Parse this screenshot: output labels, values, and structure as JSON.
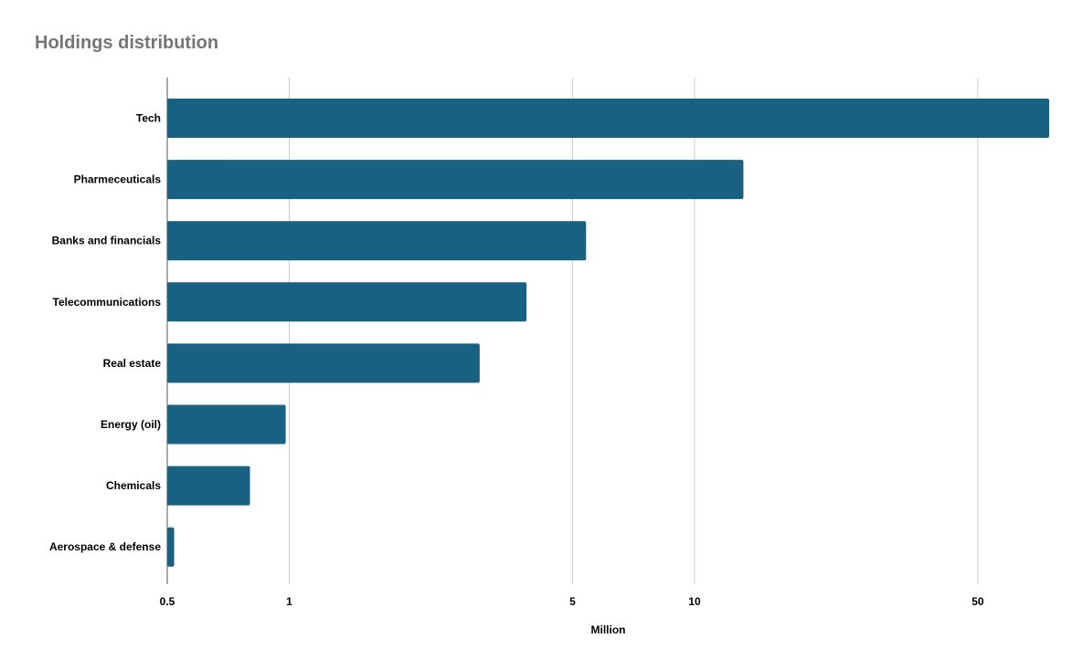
{
  "chart_data": {
    "type": "bar",
    "orientation": "horizontal",
    "title": "Holdings distribution",
    "xlabel": "Million",
    "ylabel": "",
    "x_scale": "log",
    "xlim": [
      0.5,
      75
    ],
    "x_ticks": [
      0.5,
      1,
      5,
      10,
      50
    ],
    "x_tick_labels": [
      "0.5",
      "1",
      "5",
      "10",
      "50"
    ],
    "grid": "vertical",
    "legend": "none",
    "categories": [
      "Tech",
      "Pharmeceuticals",
      "Banks and financials",
      "Telecommunications",
      "Real estate",
      "Energy (oil)",
      "Chemicals",
      "Aerospace & defense"
    ],
    "values": [
      75,
      13.2,
      5.4,
      3.85,
      2.95,
      0.98,
      0.8,
      0.52
    ],
    "colors": {
      "bar": "#186183",
      "grid": "#cccccc",
      "title": "#757575",
      "label": "#000000"
    }
  }
}
